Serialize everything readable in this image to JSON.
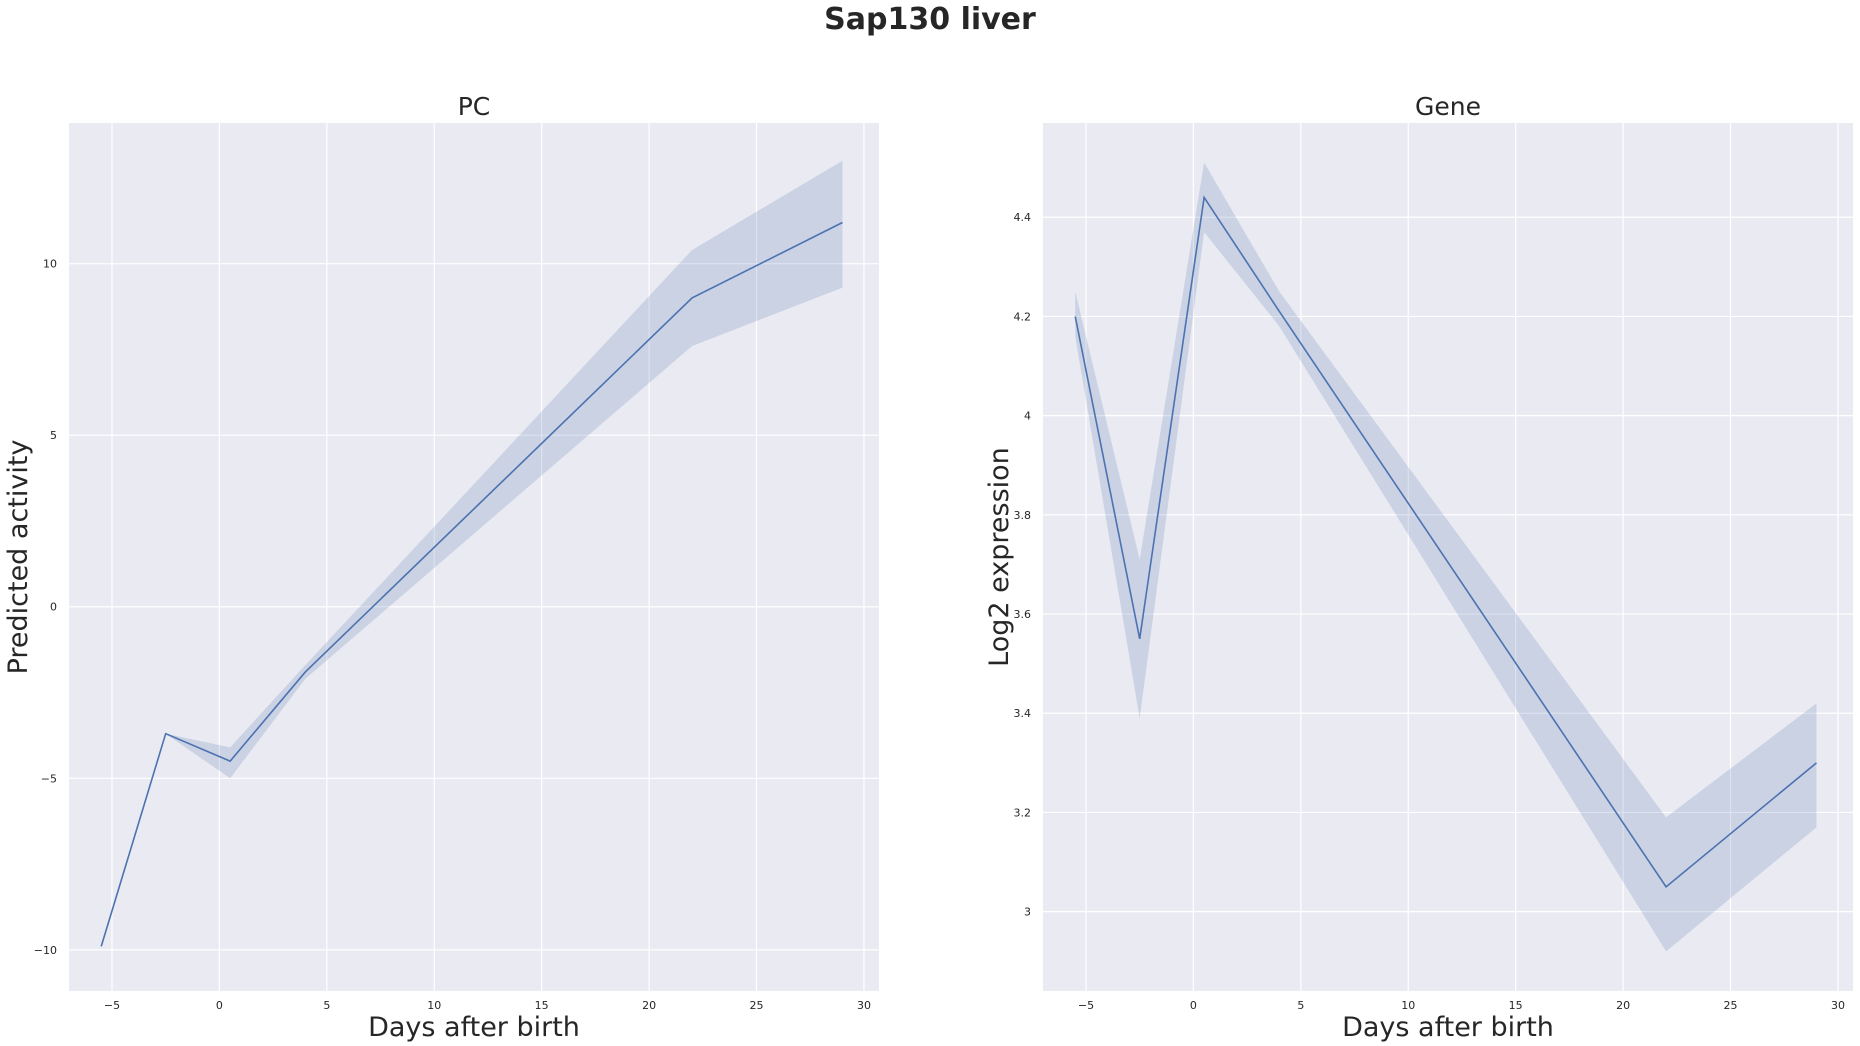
{
  "suptitle": "Sap130 liver",
  "colors": {
    "background": "#eaeaf2",
    "grid": "#ffffff",
    "series": "#4c72b0"
  },
  "chart_data": [
    {
      "type": "line",
      "title": "PC",
      "xlabel": "Days after birth",
      "ylabel": "Predicted activity",
      "xlim": [
        -7,
        30.7
      ],
      "ylim": [
        -11.2,
        14.1
      ],
      "xticks": [
        -5,
        0,
        5,
        10,
        15,
        20,
        25,
        30
      ],
      "yticks": [
        -10,
        -5,
        0,
        5,
        10
      ],
      "grid": true,
      "series": [
        {
          "x": [
            -5.5,
            -2.5,
            0.5,
            4,
            22,
            29
          ],
          "y": [
            -9.9,
            -3.7,
            -4.5,
            -1.9,
            9.0,
            11.2
          ],
          "ci_low": [
            -9.9,
            -3.7,
            -5.0,
            -2.1,
            7.6,
            9.3
          ],
          "ci_high": [
            -9.9,
            -3.7,
            -4.1,
            -1.7,
            10.4,
            13.0
          ]
        }
      ]
    },
    {
      "type": "line",
      "title": "Gene",
      "xlabel": "Days after birth",
      "ylabel": "Log2 expression",
      "xlim": [
        -7,
        30.7
      ],
      "ylim": [
        2.84,
        4.59
      ],
      "xticks": [
        -5,
        0,
        5,
        10,
        15,
        20,
        25,
        30
      ],
      "yticks": [
        3.0,
        3.2,
        3.4,
        3.6,
        3.8,
        4.0,
        4.2,
        4.4
      ],
      "grid": true,
      "series": [
        {
          "x": [
            -5.5,
            -2.5,
            0.5,
            4,
            22,
            29
          ],
          "y": [
            4.2,
            3.55,
            4.44,
            4.21,
            3.05,
            3.3
          ],
          "ci_low": [
            4.16,
            3.39,
            4.37,
            4.18,
            2.92,
            3.17
          ],
          "ci_high": [
            4.25,
            3.71,
            4.51,
            4.25,
            3.19,
            3.42
          ]
        }
      ]
    }
  ]
}
